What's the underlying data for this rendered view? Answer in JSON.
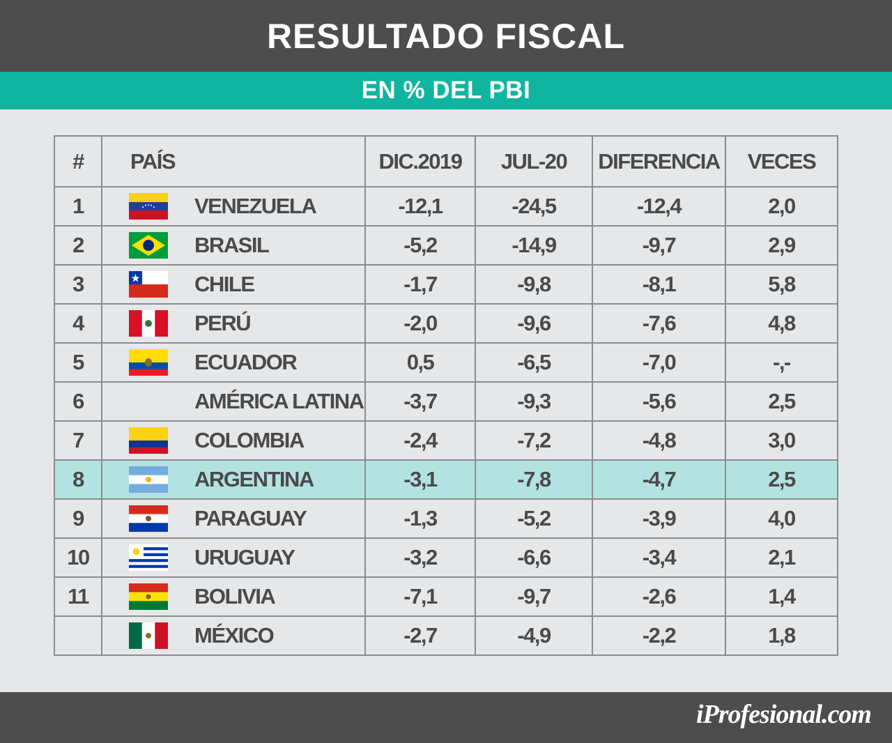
{
  "header": {
    "title": "RESULTADO FISCAL",
    "subtitle": "EN % DEL PBI"
  },
  "table": {
    "columns": [
      "#",
      "PAÍS",
      "DIC.2019",
      "JUL-20",
      "DIFERENCIA",
      "VECES"
    ],
    "rows": [
      {
        "rank": "1",
        "country": "VENEZUELA",
        "flag": "venezuela-flag-icon",
        "dic2019": "-12,1",
        "jul20": "-24,5",
        "diferencia": "-12,4",
        "veces": "2,0"
      },
      {
        "rank": "2",
        "country": "BRASIL",
        "flag": "brazil-flag-icon",
        "dic2019": "-5,2",
        "jul20": "-14,9",
        "diferencia": "-9,7",
        "veces": "2,9"
      },
      {
        "rank": "3",
        "country": "CHILE",
        "flag": "chile-flag-icon",
        "dic2019": "-1,7",
        "jul20": "-9,8",
        "diferencia": "-8,1",
        "veces": "5,8"
      },
      {
        "rank": "4",
        "country": "PERÚ",
        "flag": "peru-flag-icon",
        "dic2019": "-2,0",
        "jul20": "-9,6",
        "diferencia": "-7,6",
        "veces": "4,8"
      },
      {
        "rank": "5",
        "country": "ECUADOR",
        "flag": "ecuador-flag-icon",
        "dic2019": "0,5",
        "jul20": "-6,5",
        "diferencia": "-7,0",
        "veces": "-,-"
      },
      {
        "rank": "6",
        "country": "AMÉRICA LATINA",
        "flag": "",
        "dic2019": "-3,7",
        "jul20": "-9,3",
        "diferencia": "-5,6",
        "veces": "2,5"
      },
      {
        "rank": "7",
        "country": "COLOMBIA",
        "flag": "colombia-flag-icon",
        "dic2019": "-2,4",
        "jul20": "-7,2",
        "diferencia": "-4,8",
        "veces": "3,0"
      },
      {
        "rank": "8",
        "country": "ARGENTINA",
        "flag": "argentina-flag-icon",
        "dic2019": "-3,1",
        "jul20": "-7,8",
        "diferencia": "-4,7",
        "veces": "2,5",
        "highlight": true
      },
      {
        "rank": "9",
        "country": "PARAGUAY",
        "flag": "paraguay-flag-icon",
        "dic2019": "-1,3",
        "jul20": "-5,2",
        "diferencia": "-3,9",
        "veces": "4,0"
      },
      {
        "rank": "10",
        "country": "URUGUAY",
        "flag": "uruguay-flag-icon",
        "dic2019": "-3,2",
        "jul20": "-6,6",
        "diferencia": "-3,4",
        "veces": "2,1"
      },
      {
        "rank": "11",
        "country": "BOLIVIA",
        "flag": "bolivia-flag-icon",
        "dic2019": "-7,1",
        "jul20": "-9,7",
        "diferencia": "-2,6",
        "veces": "1,4"
      },
      {
        "rank": "",
        "country": "MÉXICO",
        "flag": "mexico-flag-icon",
        "dic2019": "-2,7",
        "jul20": "-4,9",
        "diferencia": "-2,2",
        "veces": "1,8"
      }
    ]
  },
  "chart_data": {
    "type": "table",
    "title": "RESULTADO FISCAL",
    "subtitle": "EN % DEL PBI",
    "columns": [
      "#",
      "PAÍS",
      "DIC.2019",
      "JUL-20",
      "DIFERENCIA",
      "VECES"
    ],
    "rows": [
      [
        "1",
        "VENEZUELA",
        -12.1,
        -24.5,
        -12.4,
        2.0
      ],
      [
        "2",
        "BRASIL",
        -5.2,
        -14.9,
        -9.7,
        2.9
      ],
      [
        "3",
        "CHILE",
        -1.7,
        -9.8,
        -8.1,
        5.8
      ],
      [
        "4",
        "PERÚ",
        -2.0,
        -9.6,
        -7.6,
        4.8
      ],
      [
        "5",
        "ECUADOR",
        0.5,
        -6.5,
        -7.0,
        "-,-"
      ],
      [
        "6",
        "AMÉRICA LATINA",
        -3.7,
        -9.3,
        -5.6,
        2.5
      ],
      [
        "7",
        "COLOMBIA",
        -2.4,
        -7.2,
        -4.8,
        3.0
      ],
      [
        "8",
        "ARGENTINA",
        -3.1,
        -7.8,
        -4.7,
        2.5
      ],
      [
        "9",
        "PARAGUAY",
        -1.3,
        -5.2,
        -3.9,
        4.0
      ],
      [
        "10",
        "URUGUAY",
        -3.2,
        -6.6,
        -3.4,
        2.1
      ],
      [
        "11",
        "BOLIVIA",
        -7.1,
        -9.7,
        -2.6,
        1.4
      ],
      [
        "",
        "MÉXICO",
        -2.7,
        -4.9,
        -2.2,
        1.8
      ]
    ],
    "highlighted_row": "ARGENTINA",
    "highlight_color": "#b3e3e1"
  },
  "footer": {
    "brand": "iProfesional.com"
  },
  "colors": {
    "header_bg": "#4d4d4d",
    "accent": "#0fb5a0",
    "background": "#e6e7e8"
  }
}
